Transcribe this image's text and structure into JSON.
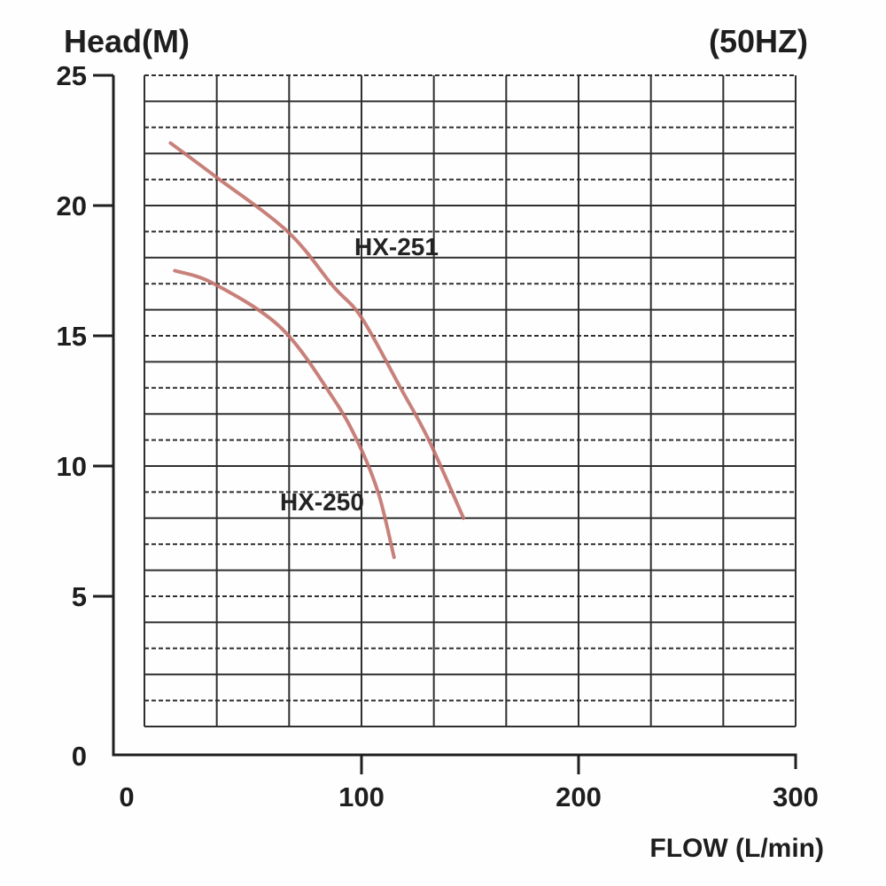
{
  "chart": {
    "y_axis_title": "Head(M)",
    "frequency_label": "(50HZ)",
    "x_axis_label": "FLOW (L/min)",
    "y_tick_labels": [
      "25",
      "20",
      "15",
      "10",
      "5",
      "0"
    ],
    "x_tick_labels": [
      "0",
      "100",
      "200",
      "300"
    ]
  },
  "colors": {
    "curve": "#c2736b",
    "grid": "#2f2f2f",
    "axis": "#1f1f1f",
    "text": "#1e1e1e",
    "background": "#fefefe"
  },
  "chart_data": {
    "type": "line",
    "title": "",
    "xlabel": "FLOW (L/min)",
    "ylabel": "Head(M)",
    "annotation": "(50HZ)",
    "xlim": [
      0,
      300
    ],
    "ylim": [
      0,
      25
    ],
    "x_ticks": [
      0,
      100,
      200,
      300
    ],
    "y_ticks": [
      0,
      5,
      10,
      15,
      20,
      25
    ],
    "grid": true,
    "grid_columns": 9,
    "grid_rows": 25,
    "legend_position": "inline-labels",
    "series": [
      {
        "name": "HX-251",
        "color": "#c2736b",
        "points": [
          [
            12,
            22.4
          ],
          [
            33,
            21.1
          ],
          [
            66,
            19.0
          ],
          [
            87,
            16.9
          ],
          [
            100,
            15.7
          ],
          [
            118,
            13.0
          ],
          [
            131,
            11.0
          ],
          [
            147,
            8.0
          ]
        ]
      },
      {
        "name": "HX-250",
        "color": "#c2736b",
        "points": [
          [
            14,
            17.5
          ],
          [
            32,
            17.0
          ],
          [
            63,
            15.3
          ],
          [
            87,
            12.6
          ],
          [
            99,
            10.8
          ],
          [
            108,
            8.9
          ],
          [
            115,
            6.5
          ]
        ]
      }
    ]
  }
}
